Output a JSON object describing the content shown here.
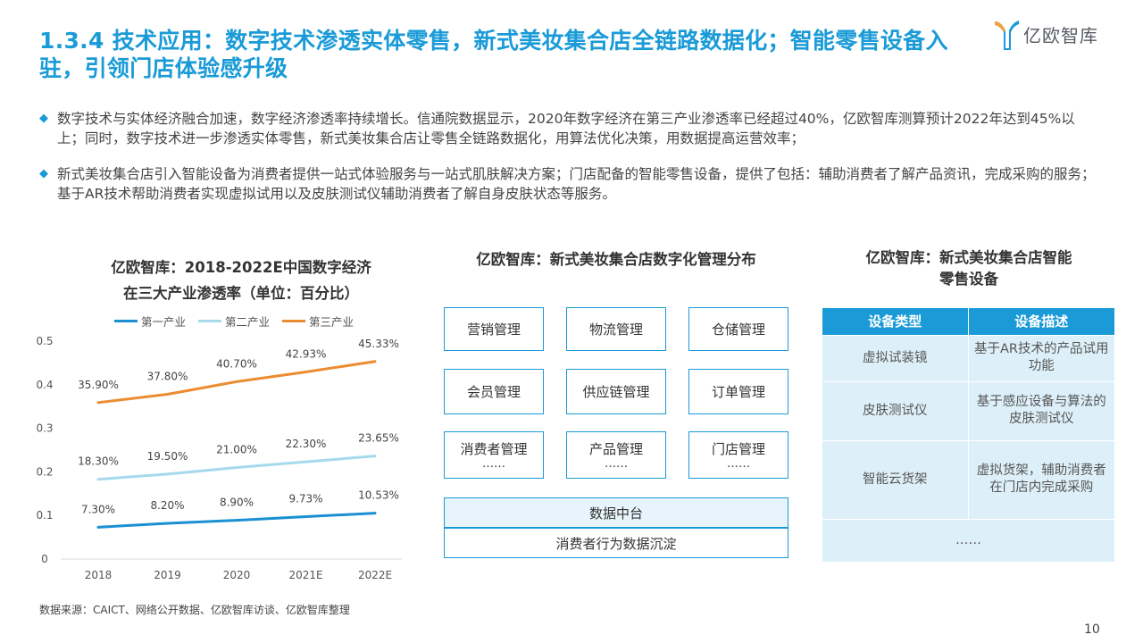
{
  "header": {
    "title": "1.3.4 技术应用：数字技术渗透实体零售，新式美妆集合店全链路数据化；智能零售设备入驻，引领门店体验感升级",
    "logo_text": "亿欧智库"
  },
  "bullets": [
    "数字技术与实体经济融合加速，数字经济渗透率持续增长。信通院数据显示，2020年数字经济在第三产业渗透率已经超过40%，亿欧智库测算预计2022年达到45%以上；同时，数字技术进一步渗透实体零售，新式美妆集合店让零售全链路数据化，用算法优化决策，用数据提高运营效率；",
    "新式美妆集合店引入智能设备为消费者提供一站式体验服务与一站式肌肤解决方案；门店配备的智能零售设备，提供了包括：辅助消费者了解产品资讯，完成采购的服务；基于AR技术帮助消费者实现虚拟试用以及皮肤测试仪辅助消费者了解自身皮肤状态等服务。"
  ],
  "chart_data": {
    "type": "line",
    "title": "亿欧智库：2018-2022E中国数字经济在三大产业渗透率（单位：百分比）",
    "title_line1": "亿欧智库：2018-2022E中国数字经济",
    "title_line2": "在三大产业渗透率（单位：百分比）",
    "categories": [
      "2018",
      "2019",
      "2020",
      "2021E",
      "2022E"
    ],
    "ylim": [
      0,
      0.5
    ],
    "yticks": [
      "0",
      "0.1",
      "0.2",
      "0.3",
      "0.4",
      "0.5"
    ],
    "legend_position": "top",
    "grid": false,
    "series": [
      {
        "name": "第一产业",
        "color": "#1a8fd2",
        "values": [
          0.073,
          0.082,
          0.089,
          0.0973,
          0.1053
        ],
        "labels": [
          "7.30%",
          "8.20%",
          "8.90%",
          "9.73%",
          "10.53%"
        ]
      },
      {
        "name": "第二产业",
        "color": "#a6d9ec",
        "values": [
          0.183,
          0.195,
          0.21,
          0.223,
          0.2365
        ],
        "labels": [
          "18.30%",
          "19.50%",
          "21.00%",
          "22.30%",
          "23.65%"
        ]
      },
      {
        "name": "第三产业",
        "color": "#ec8c32",
        "values": [
          0.359,
          0.378,
          0.407,
          0.4293,
          0.4533
        ],
        "labels": [
          "35.90%",
          "37.80%",
          "40.70%",
          "42.93%",
          "45.33%"
        ]
      }
    ]
  },
  "source": "数据来源：CAICT、网络公开数据、亿欧智库访谈、亿欧智库整理",
  "middle": {
    "title": "亿欧智库：新式美妆集合店数字化管理分布",
    "modules": [
      "营销管理",
      "物流管理",
      "仓储管理",
      "会员管理",
      "供应链管理",
      "订单管理",
      "消费者管理",
      "产品管理",
      "门店管理"
    ],
    "ellipsis": "……",
    "platform": "数据中台",
    "foundation": "消费者行为数据沉淀"
  },
  "right": {
    "title_line1": "亿欧智库：新式美妆集合店智能",
    "title_line2": "零售设备",
    "headers": [
      "设备类型",
      "设备描述"
    ],
    "rows": [
      {
        "type": "虚拟试装镜",
        "desc": "基于AR技术的产品试用功能"
      },
      {
        "type": "皮肤测试仪",
        "desc": "基于感应设备与算法的皮肤测试仪"
      },
      {
        "type": "智能云货架",
        "desc": "虚拟货架，辅助消费者在门店内完成采购"
      }
    ],
    "more": "……"
  },
  "page_number": "10",
  "colors": {
    "accent": "#1a9bd7",
    "band_fill": "#e7f4fb",
    "table_cell": "#ddf0f9"
  }
}
